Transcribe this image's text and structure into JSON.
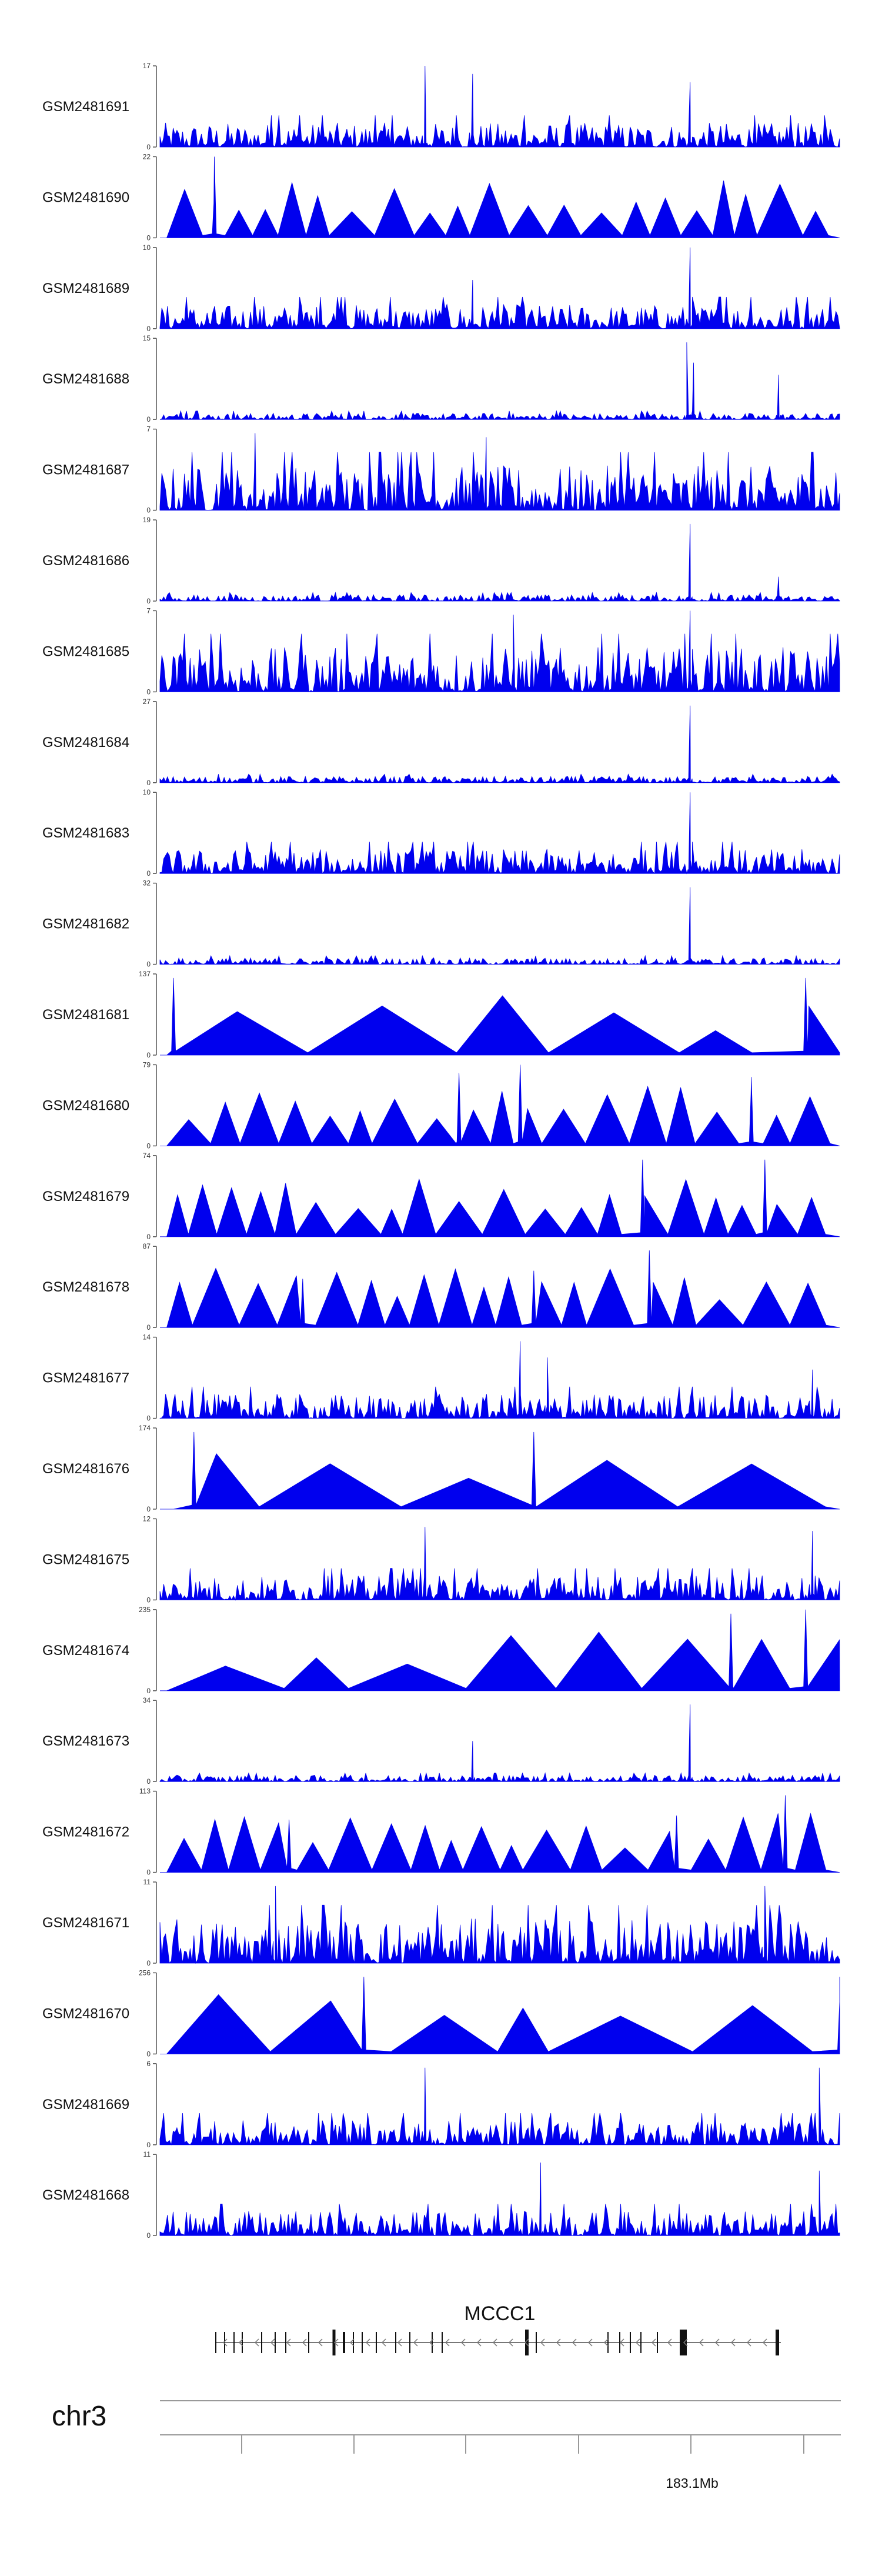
{
  "chart_data": {
    "type": "area",
    "title": "",
    "xlabel": "",
    "ylabel": "",
    "color": "#0000ee",
    "tracks": [
      {
        "name": "GSM2481691",
        "ymax": 17,
        "pattern": "dense",
        "peaks": [
          [
            0.39,
            1.0
          ],
          [
            0.46,
            0.9
          ],
          [
            0.78,
            0.8
          ]
        ]
      },
      {
        "name": "GSM2481690",
        "ymax": 22,
        "pattern": "triangles",
        "peaks": [
          [
            0.08,
            1.0
          ]
        ]
      },
      {
        "name": "GSM2481689",
        "ymax": 10,
        "pattern": "dense",
        "peaks": [
          [
            0.78,
            1.0
          ],
          [
            0.46,
            0.6
          ]
        ]
      },
      {
        "name": "GSM2481688",
        "ymax": 15,
        "pattern": "sparse",
        "peaks": [
          [
            0.775,
            0.95
          ],
          [
            0.785,
            0.7
          ],
          [
            0.91,
            0.55
          ]
        ]
      },
      {
        "name": "GSM2481687",
        "ymax": 7,
        "pattern": "dense-high",
        "peaks": [
          [
            0.14,
            0.95
          ],
          [
            0.48,
            0.9
          ]
        ]
      },
      {
        "name": "GSM2481686",
        "ymax": 19,
        "pattern": "sparse",
        "peaks": [
          [
            0.78,
            0.95
          ],
          [
            0.91,
            0.3
          ]
        ]
      },
      {
        "name": "GSM2481685",
        "ymax": 7,
        "pattern": "dense-high",
        "peaks": [
          [
            0.52,
            0.95
          ],
          [
            0.78,
            1.0
          ]
        ]
      },
      {
        "name": "GSM2481684",
        "ymax": 27,
        "pattern": "sparse",
        "peaks": [
          [
            0.78,
            0.95
          ]
        ]
      },
      {
        "name": "GSM2481683",
        "ymax": 10,
        "pattern": "dense",
        "peaks": [
          [
            0.78,
            1.0
          ]
        ]
      },
      {
        "name": "GSM2481682",
        "ymax": 32,
        "pattern": "sparse",
        "peaks": [
          [
            0.78,
            0.95
          ]
        ]
      },
      {
        "name": "GSM2481681",
        "ymax": 137,
        "pattern": "triangles-wide",
        "peaks": [
          [
            0.02,
            0.95
          ],
          [
            0.95,
            0.95
          ]
        ]
      },
      {
        "name": "GSM2481680",
        "ymax": 79,
        "pattern": "triangles",
        "peaks": [
          [
            0.44,
            0.9
          ],
          [
            0.53,
            1.0
          ],
          [
            0.87,
            0.85
          ]
        ]
      },
      {
        "name": "GSM2481679",
        "ymax": 74,
        "pattern": "triangles",
        "peaks": [
          [
            0.71,
            0.95
          ],
          [
            0.89,
            0.95
          ]
        ]
      },
      {
        "name": "GSM2481678",
        "ymax": 87,
        "pattern": "triangles",
        "peaks": [
          [
            0.72,
            0.95
          ],
          [
            0.55,
            0.7
          ],
          [
            0.21,
            0.6
          ]
        ]
      },
      {
        "name": "GSM2481677",
        "ymax": 14,
        "pattern": "dense",
        "peaks": [
          [
            0.53,
            0.95
          ],
          [
            0.57,
            0.75
          ],
          [
            0.96,
            0.6
          ]
        ]
      },
      {
        "name": "GSM2481676",
        "ymax": 174,
        "pattern": "triangles-big",
        "peaks": [
          [
            0.05,
            0.95
          ],
          [
            0.55,
            0.95
          ]
        ]
      },
      {
        "name": "GSM2481675",
        "ymax": 12,
        "pattern": "dense",
        "peaks": [
          [
            0.39,
            0.9
          ],
          [
            0.96,
            0.85
          ]
        ]
      },
      {
        "name": "GSM2481674",
        "ymax": 235,
        "pattern": "triangles-wide",
        "peaks": [
          [
            0.84,
            0.95
          ],
          [
            0.95,
            1.0
          ]
        ]
      },
      {
        "name": "GSM2481673",
        "ymax": 34,
        "pattern": "sparse",
        "peaks": [
          [
            0.78,
            0.95
          ],
          [
            0.46,
            0.5
          ]
        ]
      },
      {
        "name": "GSM2481672",
        "ymax": 113,
        "pattern": "triangles",
        "peaks": [
          [
            0.92,
            0.95
          ],
          [
            0.19,
            0.65
          ],
          [
            0.76,
            0.7
          ]
        ]
      },
      {
        "name": "GSM2481671",
        "ymax": 11,
        "pattern": "dense-high",
        "peaks": [
          [
            0.17,
            0.95
          ],
          [
            0.89,
            0.95
          ]
        ]
      },
      {
        "name": "GSM2481670",
        "ymax": 256,
        "pattern": "triangles-wide",
        "peaks": [
          [
            0.3,
            0.95
          ],
          [
            1.0,
            0.95
          ]
        ]
      },
      {
        "name": "GSM2481669",
        "ymax": 6,
        "pattern": "dense",
        "peaks": [
          [
            0.39,
            0.95
          ],
          [
            0.97,
            0.95
          ]
        ]
      },
      {
        "name": "GSM2481668",
        "ymax": 11,
        "pattern": "dense",
        "peaks": [
          [
            0.56,
            0.9
          ],
          [
            0.97,
            0.8
          ]
        ]
      }
    ],
    "gene": {
      "name": "MCCC1",
      "strand": "-"
    },
    "chromosome": "chr3",
    "position_label": "183.1Mb",
    "ymin_label": "0"
  }
}
